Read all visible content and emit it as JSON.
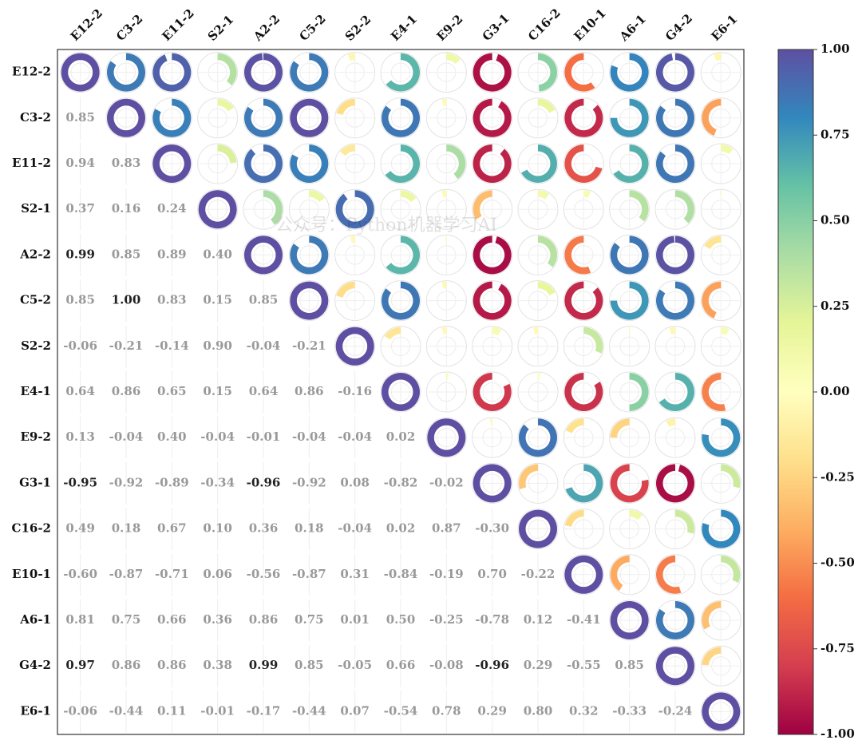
{
  "chart_data": {
    "type": "correlation_rings",
    "labels": [
      "E12-2",
      "C3-2",
      "E11-2",
      "S2-1",
      "A2-2",
      "C5-2",
      "S2-2",
      "E4-1",
      "E9-2",
      "G3-1",
      "C16-2",
      "E10-1",
      "A6-1",
      "G4-2",
      "E6-1"
    ],
    "values": [
      [
        1
      ],
      [
        0.85,
        1
      ],
      [
        0.94,
        0.83,
        1
      ],
      [
        0.37,
        0.16,
        0.24,
        1
      ],
      [
        0.99,
        0.85,
        0.89,
        0.4,
        1
      ],
      [
        0.85,
        1,
        0.83,
        0.15,
        0.85,
        1
      ],
      [
        -0.06,
        -0.21,
        -0.14,
        0.9,
        -0.04,
        -0.21,
        1
      ],
      [
        0.64,
        0.86,
        0.65,
        0.15,
        0.64,
        0.86,
        -0.16,
        1
      ],
      [
        0.13,
        -0.04,
        0.4,
        -0.04,
        -0.01,
        -0.04,
        -0.04,
        0.02,
        1
      ],
      [
        -0.95,
        -0.92,
        -0.89,
        -0.34,
        -0.96,
        -0.92,
        0.08,
        -0.82,
        -0.02,
        1
      ],
      [
        0.49,
        0.18,
        0.67,
        0.1,
        0.36,
        0.18,
        -0.04,
        0.02,
        0.87,
        -0.3,
        1
      ],
      [
        -0.6,
        -0.87,
        -0.71,
        0.06,
        -0.56,
        -0.87,
        0.31,
        -0.84,
        -0.19,
        0.7,
        -0.22,
        1
      ],
      [
        0.81,
        0.75,
        0.66,
        0.36,
        0.86,
        0.75,
        0.01,
        0.5,
        -0.25,
        -0.78,
        0.12,
        -0.41,
        1
      ],
      [
        0.97,
        0.86,
        0.86,
        0.38,
        0.99,
        0.85,
        -0.05,
        0.66,
        -0.08,
        -0.96,
        0.29,
        -0.55,
        0.85,
        1
      ],
      [
        -0.06,
        -0.44,
        0.11,
        -0.01,
        -0.17,
        -0.44,
        0.07,
        -0.54,
        0.78,
        0.29,
        0.8,
        0.32,
        -0.33,
        -0.24,
        1
      ]
    ],
    "value_labels": [
      [],
      [
        "0.85"
      ],
      [
        "0.94",
        "0.83"
      ],
      [
        "0.37",
        "0.16",
        "0.24"
      ],
      [
        "0.99",
        "0.85",
        "0.89",
        "0.40"
      ],
      [
        "0.85",
        "1.00",
        "0.83",
        "0.15",
        "0.85"
      ],
      [
        "-0.06",
        "-0.21",
        "-0.14",
        "0.90",
        "-0.04",
        "-0.21"
      ],
      [
        "0.64",
        "0.86",
        "0.65",
        "0.15",
        "0.64",
        "0.86",
        "-0.16"
      ],
      [
        "0.13",
        "-0.04",
        "0.40",
        "-0.04",
        "-0.01",
        "-0.04",
        "-0.04",
        "0.02"
      ],
      [
        "-0.95",
        "-0.92",
        "-0.89",
        "-0.34",
        "-0.96",
        "-0.92",
        "0.08",
        "-0.82",
        "-0.02"
      ],
      [
        "0.49",
        "0.18",
        "0.67",
        "0.10",
        "0.36",
        "0.18",
        "-0.04",
        "0.02",
        "0.87",
        "-0.30"
      ],
      [
        "-0.60",
        "-0.87",
        "-0.71",
        "0.06",
        "-0.56",
        "-0.87",
        "0.31",
        "-0.84",
        "-0.19",
        "0.70",
        "-0.22"
      ],
      [
        "0.81",
        "0.75",
        "0.66",
        "0.36",
        "0.86",
        "0.75",
        "0.01",
        "0.50",
        "-0.25",
        "-0.78",
        "0.12",
        "-0.41"
      ],
      [
        "0.97",
        "0.86",
        "0.86",
        "0.38",
        "0.99",
        "0.85",
        "-0.05",
        "0.66",
        "-0.08",
        "-0.96",
        "0.29",
        "-0.55",
        "0.85"
      ],
      [
        "-0.06",
        "-0.44",
        "0.11",
        "-0.01",
        "-0.17",
        "-0.44",
        "0.07",
        "-0.54",
        "0.78",
        "0.29",
        "0.80",
        "0.32",
        "-0.33",
        "-0.24"
      ]
    ],
    "clim": [
      -1,
      1
    ],
    "cticks": [
      {
        "value": 1,
        "label": "1.00"
      },
      0.75,
      {
        "value": 0.5,
        "label": "0.50"
      },
      0.25,
      {
        "value": 0,
        "label": "0.00"
      },
      -0.25,
      {
        "value": -0.5,
        "label": "-0.50"
      },
      -0.75,
      {
        "value": -1,
        "label": "-1.00"
      }
    ],
    "colorscale": [
      "#9e0142",
      "#d53e4f",
      "#f46d43",
      "#fdae61",
      "#fee08b",
      "#ffffbf",
      "#e6f598",
      "#abdda4",
      "#66c2a5",
      "#3288bd",
      "#5e4fa2"
    ],
    "watermark": "公众号：Python机器学习AI"
  }
}
